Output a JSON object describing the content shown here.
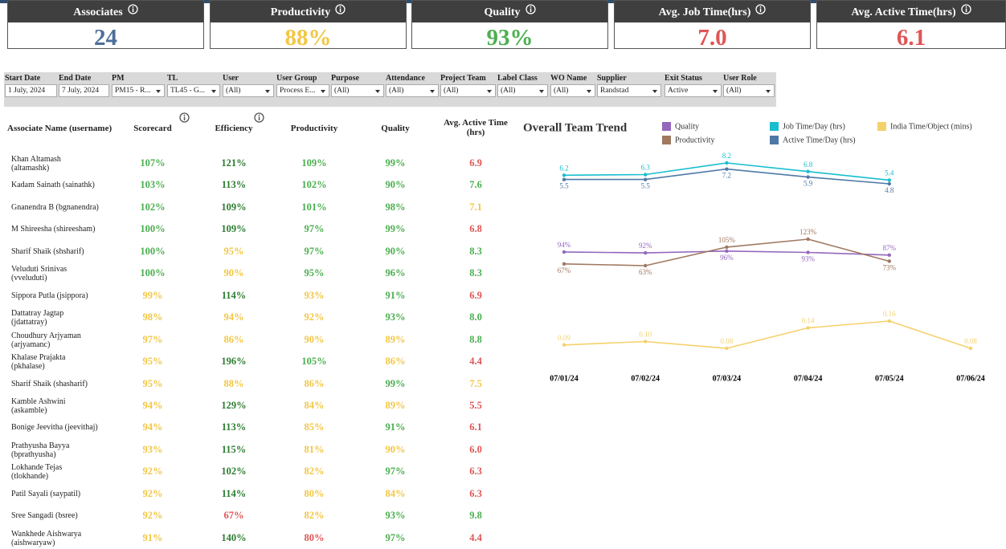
{
  "kpis": [
    {
      "label": "Associates",
      "value": "24",
      "color": "#4e6e9a"
    },
    {
      "label": "Productivity",
      "value": "88%",
      "color": "#f2c744"
    },
    {
      "label": "Quality",
      "value": "93%",
      "color": "#4caf50"
    },
    {
      "label": "Avg. Job Time(hrs)",
      "value": "7.0",
      "color": "#e05555"
    },
    {
      "label": "Avg. Active Time(hrs)",
      "value": "6.1",
      "color": "#e05555"
    }
  ],
  "filters": [
    {
      "label": "Start Date",
      "value": "1 July, 2024"
    },
    {
      "label": "End Date",
      "value": "7 July, 2024"
    },
    {
      "label": "PM",
      "value": "PM15 - R..."
    },
    {
      "label": "TL",
      "value": "TL45 - G..."
    },
    {
      "label": "User",
      "value": "(All)"
    },
    {
      "label": "User Group",
      "value": "Process E..."
    },
    {
      "label": "Purpose",
      "value": "(All)"
    },
    {
      "label": "Attendance",
      "value": "(All)"
    },
    {
      "label": "Project Team",
      "value": "(All)"
    },
    {
      "label": "Label Class",
      "value": "(All)"
    },
    {
      "label": "WO Name",
      "value": "(All)"
    },
    {
      "label": "Supplier",
      "value": "Randstad"
    },
    {
      "label": "Exit Status",
      "value": "Active"
    },
    {
      "label": "User Role",
      "value": "(All)"
    }
  ],
  "table": {
    "columns": [
      "Associate Name (username)",
      "Scorecard",
      "Efficiency",
      "Productivity",
      "Quality",
      "Avg. Active Time\n(hrs)"
    ],
    "rows": [
      {
        "cells": [
          "Khan Altamash\n(altamashk)",
          "107%",
          "121%",
          "109%",
          "99%",
          "6.9"
        ],
        "colors": [
          "#4caf50",
          "#2e7d32",
          "#4caf50",
          "#4caf50",
          "#e05555"
        ]
      },
      {
        "cells": [
          "Kadam Sainath (sainathk)",
          "103%",
          "113%",
          "102%",
          "90%",
          "7.6"
        ],
        "colors": [
          "#4caf50",
          "#2e7d32",
          "#4caf50",
          "#4caf50",
          "#4caf50"
        ]
      },
      {
        "cells": [
          "Gnanendra B (bgnanendra)",
          "102%",
          "109%",
          "101%",
          "98%",
          "7.1"
        ],
        "colors": [
          "#4caf50",
          "#2e7d32",
          "#4caf50",
          "#4caf50",
          "#f2c744"
        ]
      },
      {
        "cells": [
          "M Shireesha (shireesham)",
          "100%",
          "109%",
          "97%",
          "99%",
          "6.8"
        ],
        "colors": [
          "#4caf50",
          "#2e7d32",
          "#4caf50",
          "#4caf50",
          "#e05555"
        ]
      },
      {
        "cells": [
          "Sharif Shaik (shsharif)",
          "100%",
          "95%",
          "97%",
          "90%",
          "8.3"
        ],
        "colors": [
          "#4caf50",
          "#f2c744",
          "#4caf50",
          "#4caf50",
          "#4caf50"
        ]
      },
      {
        "cells": [
          "Veluduti Srinivas\n(vveluduti)",
          "100%",
          "90%",
          "95%",
          "96%",
          "8.3"
        ],
        "colors": [
          "#4caf50",
          "#f2c744",
          "#4caf50",
          "#4caf50",
          "#4caf50"
        ]
      },
      {
        "cells": [
          "Sippora Putla (jsippora)",
          "99%",
          "114%",
          "93%",
          "91%",
          "6.9"
        ],
        "colors": [
          "#f2c744",
          "#2e7d32",
          "#f2c744",
          "#4caf50",
          "#e05555"
        ]
      },
      {
        "cells": [
          "Dattatray Jagtap\n(jdattatray)",
          "98%",
          "94%",
          "92%",
          "93%",
          "8.0"
        ],
        "colors": [
          "#f2c744",
          "#f2c744",
          "#f2c744",
          "#4caf50",
          "#4caf50"
        ]
      },
      {
        "cells": [
          "Choudhury Arjyaman\n(arjyamanc)",
          "97%",
          "86%",
          "90%",
          "89%",
          "8.8"
        ],
        "colors": [
          "#f2c744",
          "#f2c744",
          "#f2c744",
          "#f2c744",
          "#4caf50"
        ]
      },
      {
        "cells": [
          "Khalase Prajakta\n(pkhalase)",
          "95%",
          "196%",
          "105%",
          "86%",
          "4.4"
        ],
        "colors": [
          "#f2c744",
          "#2e7d32",
          "#4caf50",
          "#f2c744",
          "#e05555"
        ]
      },
      {
        "cells": [
          "Sharif Shaik (shasharif)",
          "95%",
          "88%",
          "86%",
          "99%",
          "7.5"
        ],
        "colors": [
          "#f2c744",
          "#f2c744",
          "#f2c744",
          "#4caf50",
          "#f2c744"
        ]
      },
      {
        "cells": [
          "Kamble Ashwini\n(askamble)",
          "94%",
          "129%",
          "84%",
          "89%",
          "5.5"
        ],
        "colors": [
          "#f2c744",
          "#2e7d32",
          "#f2c744",
          "#f2c744",
          "#e05555"
        ]
      },
      {
        "cells": [
          "Bonige Jeevitha (jeevithaj)",
          "94%",
          "113%",
          "85%",
          "91%",
          "6.1"
        ],
        "colors": [
          "#f2c744",
          "#2e7d32",
          "#f2c744",
          "#4caf50",
          "#e05555"
        ]
      },
      {
        "cells": [
          "Prathyusha Bayya\n(bprathyusha)",
          "93%",
          "115%",
          "81%",
          "90%",
          "6.0"
        ],
        "colors": [
          "#f2c744",
          "#2e7d32",
          "#f2c744",
          "#f2c744",
          "#e05555"
        ]
      },
      {
        "cells": [
          "Lokhande Tejas\n(tlokhande)",
          "92%",
          "102%",
          "82%",
          "97%",
          "6.3"
        ],
        "colors": [
          "#f2c744",
          "#2e7d32",
          "#f2c744",
          "#4caf50",
          "#e05555"
        ]
      },
      {
        "cells": [
          "Patil Sayali (saypatil)",
          "92%",
          "114%",
          "80%",
          "84%",
          "6.3"
        ],
        "colors": [
          "#f2c744",
          "#2e7d32",
          "#f2c744",
          "#f2c744",
          "#e05555"
        ]
      },
      {
        "cells": [
          "Sree Sangadi (bsree)",
          "92%",
          "67%",
          "82%",
          "93%",
          "9.8"
        ],
        "colors": [
          "#f2c744",
          "#e05555",
          "#f2c744",
          "#4caf50",
          "#4caf50"
        ]
      },
      {
        "cells": [
          "Wankhede Aishwarya\n(aishwaryaw)",
          "91%",
          "140%",
          "80%",
          "97%",
          "4.4"
        ],
        "colors": [
          "#f2c744",
          "#2e7d32",
          "#e05555",
          "#4caf50",
          "#e05555"
        ]
      }
    ]
  },
  "chart_data": {
    "type": "line",
    "title": "Overall Team Trend",
    "categories": [
      "07/01/24",
      "07/02/24",
      "07/03/24",
      "07/04/24",
      "07/05/24",
      "07/06/24"
    ],
    "series": [
      {
        "name": "Quality",
        "color": "#9467bd",
        "values": [
          94,
          92,
          96,
          93,
          87,
          null
        ],
        "value_labels": [
          "94%",
          "92%",
          "96%",
          "93%",
          "87%",
          null
        ]
      },
      {
        "name": "Productivity",
        "color": "#a07860",
        "values": [
          67,
          63,
          105,
          123,
          73,
          null
        ],
        "value_labels": [
          "67%",
          "63%",
          "105%",
          "123%",
          "73%",
          null
        ]
      },
      {
        "name": "Job Time/Day (hrs)",
        "color": "#17becf",
        "values": [
          6.2,
          6.3,
          8.2,
          6.8,
          5.4,
          null
        ]
      },
      {
        "name": "Active Time/Day (hrs)",
        "color": "#4e79a7",
        "values": [
          5.5,
          5.5,
          7.2,
          5.9,
          4.8,
          null
        ]
      },
      {
        "name": "India Time/Object (mins)",
        "color": "#f5d16b",
        "values": [
          0.09,
          0.1,
          0.08,
          0.14,
          0.16,
          0.08
        ],
        "value_labels": [
          "0.09",
          "0.10",
          "0.08",
          "0.14",
          "0.16",
          "0.08"
        ]
      }
    ]
  }
}
